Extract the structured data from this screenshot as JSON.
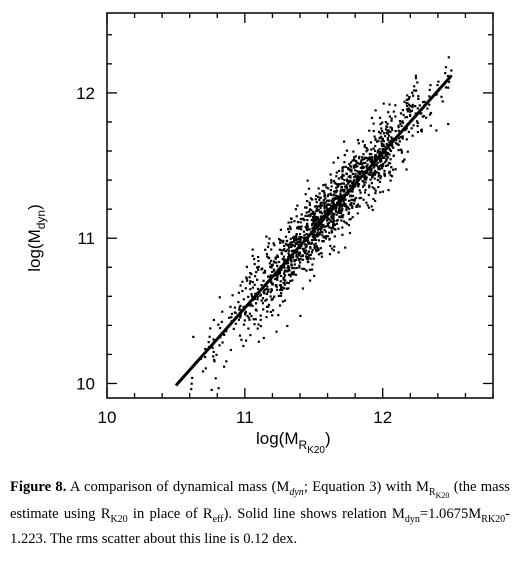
{
  "chart_data": {
    "type": "scatter",
    "title": "",
    "xlabel": "log(M",
    "xlabel_sub": "R",
    "xlabel_subsub": "K20",
    "xlabel_end": ")",
    "ylabel": "log(M",
    "ylabel_sub": "dyn",
    "ylabel_end": ")",
    "xlim": [
      10,
      12.8
    ],
    "ylim": [
      9.9,
      12.55
    ],
    "xticks": [
      10,
      11,
      12
    ],
    "yticks": [
      10,
      11,
      12
    ],
    "xtick_labels": [
      "10",
      "11",
      "12"
    ],
    "ytick_labels": [
      "10",
      "11",
      "12"
    ],
    "grid": false,
    "series": [
      {
        "kind": "scatter",
        "points": {
          "n": 1500,
          "x_mean": 11.62,
          "x_sd": 0.38,
          "x_range": [
            10.6,
            12.5
          ],
          "slope": 1.0675,
          "intercept": -1.223,
          "rms_scatter": 0.12
        }
      },
      {
        "kind": "line",
        "x": [
          10.5,
          12.5
        ],
        "y": [
          9.986,
          12.121
        ]
      }
    ]
  },
  "caption": {
    "label": "Figure 8.",
    "text": "A comparison of dynamical mass (M",
    "mdyn_sub": "dyn",
    "text2": "; Equation 3) with M",
    "r_sub": "R",
    "rk_sub": "K20",
    "text3": " (the mass estimate using R",
    "rk20_sub": "K20",
    "text4": " in place of R",
    "eff_sub": "eff",
    "text5": "). Solid line shows relation M",
    "dyn_sub2": "dyn",
    "text6": "=1.0675M",
    "rk20_sub2": "RK20",
    "text7": "-1.223. The rms scatter about this line is 0.12 dex."
  }
}
